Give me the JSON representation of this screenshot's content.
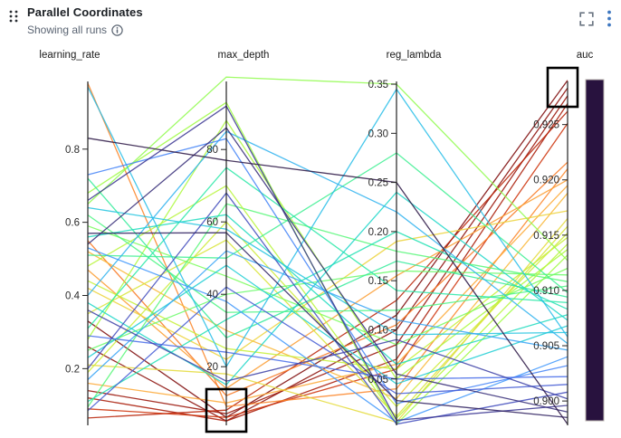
{
  "header": {
    "title": "Parallel Coordinates",
    "subtitle": "Showing all runs"
  },
  "colors": {
    "accent_blue": "#3e77c0",
    "icon_gray": "#6b7582",
    "title_text": "#1b1f24",
    "subtitle_text": "#5a6472",
    "axis_line": "#222222",
    "tick_text": "#2a2a2a",
    "annotation_box": "#000000",
    "background": "#ffffff"
  },
  "chart_data": {
    "type": "parallel-coordinates",
    "color_axis": "auc",
    "grid": false,
    "legend_position": "right-colorbar",
    "axes": [
      {
        "name": "learning_rate",
        "domain": [
          0.045,
          0.985
        ],
        "ticks": [
          {
            "v": 0.2,
            "label": "0.2"
          },
          {
            "v": 0.4,
            "label": "0.4"
          },
          {
            "v": 0.6,
            "label": "0.6"
          },
          {
            "v": 0.8,
            "label": "0.8"
          }
        ]
      },
      {
        "name": "max_depth",
        "domain": [
          3.8,
          98.8
        ],
        "ticks": [
          {
            "v": 20,
            "label": "20"
          },
          {
            "v": 40,
            "label": "40"
          },
          {
            "v": 60,
            "label": "60"
          },
          {
            "v": 80,
            "label": "80"
          }
        ]
      },
      {
        "name": "reg_lambda",
        "domain": [
          0.0028,
          0.3528
        ],
        "ticks": [
          {
            "v": 0.05,
            "label": "0.05"
          },
          {
            "v": 0.1,
            "label": "0.10"
          },
          {
            "v": 0.15,
            "label": "0.15"
          },
          {
            "v": 0.2,
            "label": "0.20"
          },
          {
            "v": 0.25,
            "label": "0.25"
          },
          {
            "v": 0.3,
            "label": "0.30"
          },
          {
            "v": 0.35,
            "label": "0.35"
          }
        ]
      },
      {
        "name": "auc",
        "domain": [
          0.8978,
          0.9289
        ],
        "ticks": [
          {
            "v": 0.9,
            "label": "0.900"
          },
          {
            "v": 0.905,
            "label": "0.905"
          },
          {
            "v": 0.91,
            "label": "0.910"
          },
          {
            "v": 0.915,
            "label": "0.915"
          },
          {
            "v": 0.92,
            "label": "0.920"
          },
          {
            "v": 0.925,
            "label": "0.925"
          }
        ]
      }
    ],
    "colormap": {
      "name": "turbo",
      "stops": [
        [
          0.0,
          "#28123e"
        ],
        [
          0.05,
          "#363087"
        ],
        [
          0.1,
          "#414cc0"
        ],
        [
          0.15,
          "#4671f2"
        ],
        [
          0.2,
          "#3e96fc"
        ],
        [
          0.25,
          "#28b9eb"
        ],
        [
          0.3,
          "#1ad4cc"
        ],
        [
          0.35,
          "#22e5ab"
        ],
        [
          0.4,
          "#46f385"
        ],
        [
          0.45,
          "#73fd60"
        ],
        [
          0.5,
          "#a3fc3d"
        ],
        [
          0.55,
          "#c8ef34"
        ],
        [
          0.6,
          "#e4dc38"
        ],
        [
          0.65,
          "#f5c63a"
        ],
        [
          0.7,
          "#fda632"
        ],
        [
          0.75,
          "#fb8022"
        ],
        [
          0.8,
          "#f05b12"
        ],
        [
          0.85,
          "#dc3b08"
        ],
        [
          0.9,
          "#c02302"
        ],
        [
          0.95,
          "#9d0f01"
        ],
        [
          1.0,
          "#7a0403"
        ]
      ]
    },
    "runs": {
      "columns": [
        "learning_rate",
        "max_depth",
        "reg_lambda",
        "auc"
      ],
      "values": [
        [
          0.33,
          6,
          0.115,
          0.929
        ],
        [
          0.26,
          5,
          0.1,
          0.9283
        ],
        [
          0.14,
          7,
          0.085,
          0.9276
        ],
        [
          0.12,
          5,
          0.07,
          0.9269
        ],
        [
          0.065,
          8,
          0.13,
          0.9262
        ],
        [
          0.09,
          6,
          0.06,
          0.9251
        ],
        [
          0.98,
          9,
          0.04,
          0.921
        ],
        [
          0.55,
          12,
          0.105,
          0.9216
        ],
        [
          0.47,
          14,
          0.155,
          0.92
        ],
        [
          0.16,
          10,
          0.065,
          0.9195
        ],
        [
          0.52,
          30,
          0.03,
          0.9188
        ],
        [
          0.42,
          22,
          0.19,
          0.9172
        ],
        [
          0.21,
          18,
          0.006,
          0.9165
        ],
        [
          0.35,
          55,
          0.012,
          0.9158
        ],
        [
          0.19,
          60,
          0.022,
          0.9152
        ],
        [
          0.44,
          25,
          0.06,
          0.9148
        ],
        [
          0.65,
          100,
          0.35,
          0.9127
        ],
        [
          0.68,
          93,
          0.004,
          0.9132
        ],
        [
          0.28,
          88,
          0.05,
          0.9137
        ],
        [
          0.59,
          45,
          0.085,
          0.912
        ],
        [
          0.25,
          40,
          0.16,
          0.9114
        ],
        [
          0.095,
          65,
          0.18,
          0.9108
        ],
        [
          0.48,
          70,
          0.01,
          0.9142
        ],
        [
          0.62,
          35,
          0.12,
          0.9104
        ],
        [
          0.51,
          50,
          0.28,
          0.9098
        ],
        [
          0.72,
          28,
          0.17,
          0.9094
        ],
        [
          0.31,
          75,
          0.14,
          0.9089
        ],
        [
          0.11,
          33,
          0.2,
          0.9083
        ],
        [
          0.56,
          62,
          0.065,
          0.9078
        ],
        [
          0.38,
          15,
          0.24,
          0.9073
        ],
        [
          0.23,
          48,
          0.045,
          0.9068
        ],
        [
          0.64,
          58,
          0.095,
          0.9062
        ],
        [
          0.97,
          20,
          0.345,
          0.9058
        ],
        [
          0.4,
          85,
          0.22,
          0.9052
        ],
        [
          0.17,
          52,
          0.11,
          0.9046
        ],
        [
          0.53,
          38,
          0.006,
          0.904
        ],
        [
          0.73,
          83,
          0.025,
          0.9032
        ],
        [
          0.29,
          24,
          0.05,
          0.9022
        ],
        [
          0.085,
          42,
          0.035,
          0.9015
        ],
        [
          0.2,
          68,
          0.004,
          0.9008
        ],
        [
          0.36,
          16,
          0.09,
          0.9002
        ],
        [
          0.66,
          92,
          0.008,
          0.8996
        ],
        [
          0.54,
          86,
          0.055,
          0.899
        ],
        [
          0.57,
          57,
          0.028,
          0.8985
        ],
        [
          0.83,
          77,
          0.25,
          0.8979
        ]
      ]
    },
    "annotations": [
      {
        "name": "best-auc-runs",
        "axis": "auc",
        "region": "top"
      },
      {
        "name": "low-max-depth-cluster",
        "axis": "max_depth",
        "region": "bottom"
      }
    ]
  }
}
